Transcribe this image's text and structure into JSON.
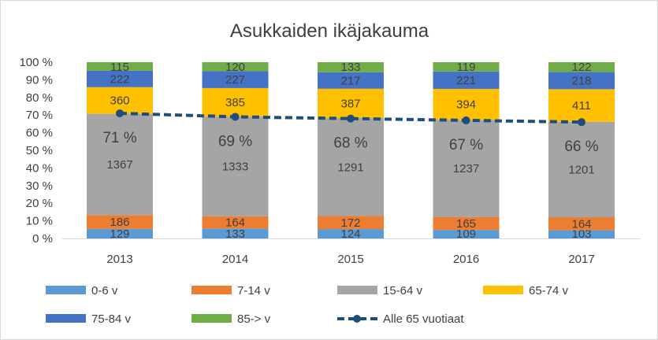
{
  "chart_data": {
    "type": "bar",
    "stacked": "percent",
    "title": "Asukkaiden ikäjakauma",
    "categories": [
      "2013",
      "2014",
      "2015",
      "2016",
      "2017"
    ],
    "y_ticks": [
      "0 %",
      "10 %",
      "20 %",
      "30 %",
      "40 %",
      "50 %",
      "60 %",
      "70 %",
      "80 %",
      "90 %",
      "100 %"
    ],
    "ylim": [
      0,
      100
    ],
    "grid": false,
    "legend_position": "bottom",
    "series": [
      {
        "name": "0-6 v",
        "values": [
          129,
          133,
          124,
          109,
          103
        ],
        "color": "#5b9bd5"
      },
      {
        "name": "7-14 v",
        "values": [
          186,
          164,
          172,
          165,
          164
        ],
        "color": "#ed7d31"
      },
      {
        "name": "15-64 v",
        "values": [
          1367,
          1333,
          1291,
          1237,
          1201
        ],
        "color": "#a5a5a5"
      },
      {
        "name": "65-74 v",
        "values": [
          360,
          385,
          387,
          394,
          411
        ],
        "color": "#ffc000"
      },
      {
        "name": "75-84 v",
        "values": [
          222,
          227,
          217,
          221,
          218
        ],
        "color": "#4472c4"
      },
      {
        "name": "85-> v",
        "values": [
          115,
          120,
          133,
          119,
          122
        ],
        "color": "#70ad47"
      }
    ],
    "line_series": {
      "name": "Alle 65 vuotiaat",
      "values": [
        71,
        69,
        68,
        67,
        66
      ],
      "labels": [
        "71 %",
        "69 %",
        "68 %",
        "67 %",
        "66 %"
      ],
      "color": "#1f4e79",
      "style": "dashed"
    }
  }
}
